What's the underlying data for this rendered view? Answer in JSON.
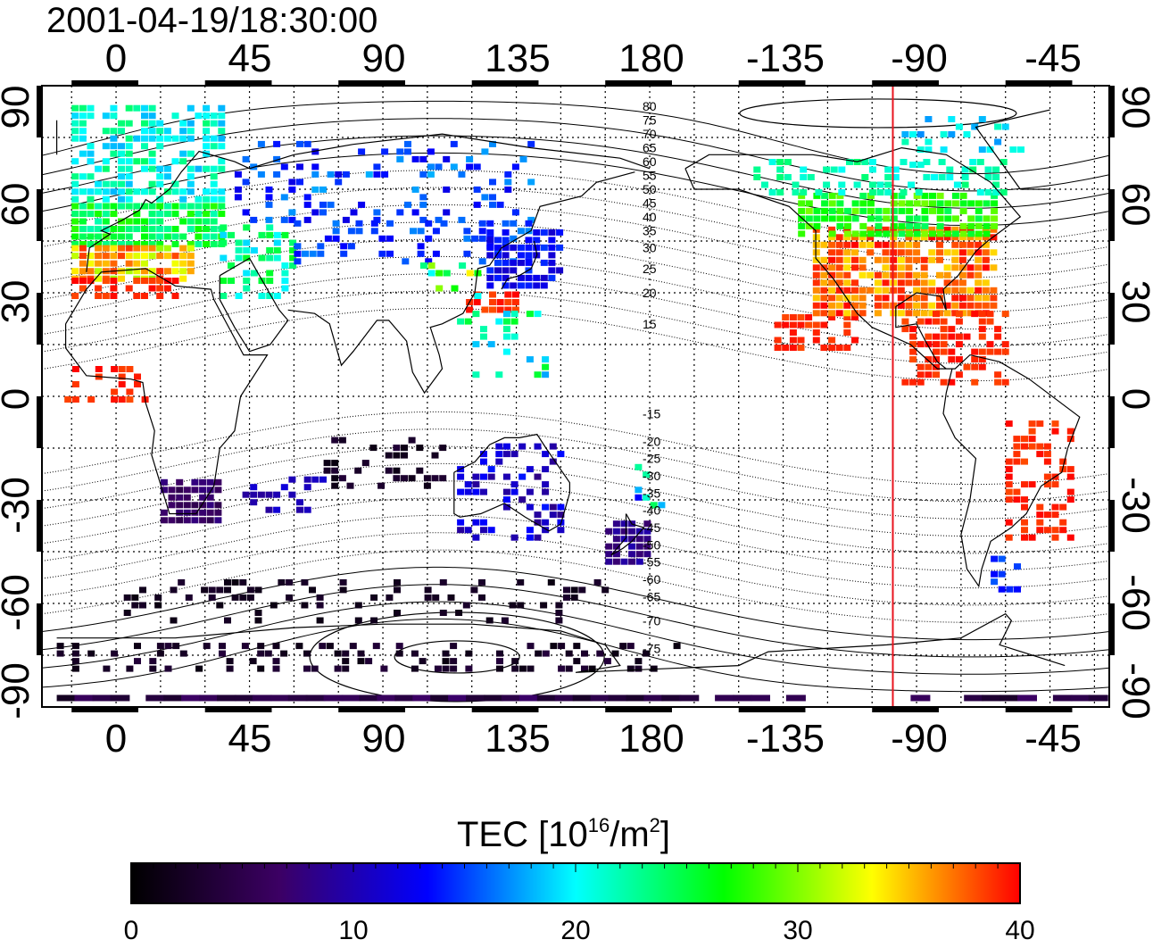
{
  "map": {
    "timestamp": "2001-04-19/18:30:00",
    "top_lon_labels": [
      "0",
      "45",
      "90",
      "135",
      "180",
      "-135",
      "-90",
      "-45"
    ],
    "bottom_lon_labels": [
      "0",
      "45",
      "90",
      "135",
      "180",
      "-135",
      "-90",
      "-45"
    ],
    "left_lat_labels": [
      "90",
      "60",
      "30",
      "0",
      "-30",
      "-60",
      "-90"
    ],
    "right_lat_labels": [
      "90",
      "60",
      "30",
      "0",
      "-30",
      "-60",
      "-90"
    ],
    "contour_labels": [
      "80",
      "75",
      "70",
      "65",
      "60",
      "55",
      "50",
      "45",
      "40",
      "35",
      "30",
      "25",
      "20",
      "15",
      "-15",
      "-20",
      "-25",
      "-30",
      "-35",
      "-40",
      "-45",
      "-50",
      "-55",
      "-60",
      "-65",
      "-70",
      "-75"
    ],
    "marker_line": {
      "lon": -98,
      "color": "#e8141e"
    },
    "colorbar": {
      "title_main": "TEC  [10",
      "title_sup1": "16",
      "title_mid": "/m",
      "title_sup2": "2",
      "title_end": "]",
      "tick_labels": [
        "0",
        "10",
        "20",
        "30",
        "40"
      ],
      "range": [
        0,
        40
      ],
      "colors": [
        "#000000",
        "#3c0064",
        "#0000ff",
        "#00ffff",
        "#00ff00",
        "#ffff00",
        "#ff0000"
      ]
    }
  },
  "chart_data": {
    "type": "heatmap",
    "title": "2001-04-19/18:30:00",
    "xlabel": "",
    "ylabel": "",
    "xlim": [
      -25,
      335
    ],
    "ylim": [
      -90,
      90
    ],
    "colorbar_label": "TEC  [10^16/m^2]",
    "value_range": [
      0,
      40
    ],
    "regions": [
      {
        "name": "",
        "lon": [
          -15,
          35
        ],
        "lat": [
          30,
          85
        ],
        "tec": 25
      },
      {
        "name": "",
        "lon": [
          -10,
          20
        ],
        "lat": [
          30,
          45
        ],
        "tec": 38
      },
      {
        "name": "",
        "lon": [
          40,
          140
        ],
        "lat": [
          40,
          75
        ],
        "tec": 15
      },
      {
        "name": "",
        "lon": [
          125,
          150
        ],
        "lat": [
          30,
          50
        ],
        "tec": 13
      },
      {
        "name": "",
        "lon": [
          120,
          135
        ],
        "lat": [
          25,
          32
        ],
        "tec": 39
      },
      {
        "name": "",
        "lon": [
          15,
          35
        ],
        "lat": [
          -35,
          -22
        ],
        "tec": 7
      },
      {
        "name": "",
        "lon": [
          115,
          150
        ],
        "lat": [
          -40,
          -12
        ],
        "tec": 11
      },
      {
        "name": "",
        "lon": [
          165,
          178
        ],
        "lat": [
          -47,
          -35
        ],
        "tec": 8
      },
      {
        "name": "",
        "lon": [
          -125,
          -70
        ],
        "lat": [
          25,
          50
        ],
        "tec": 38
      },
      {
        "name": "",
        "lon": [
          -135,
          -60
        ],
        "lat": [
          45,
          70
        ],
        "tec": 22
      },
      {
        "name": "",
        "lon": [
          -60,
          -40
        ],
        "lat": [
          -40,
          -5
        ],
        "tec": 39
      },
      {
        "name": "",
        "lon": [
          -15,
          180
        ],
        "lat": [
          -88,
          -70
        ],
        "tec": 3
      }
    ]
  }
}
